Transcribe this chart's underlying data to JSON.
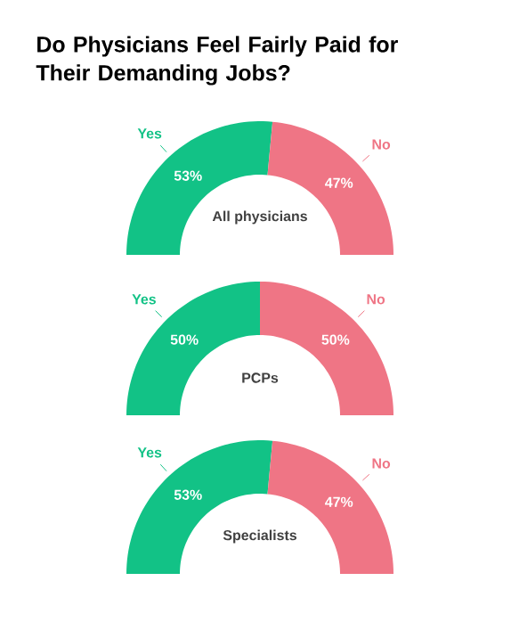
{
  "chart_data": [
    {
      "type": "donut",
      "title": "Do Physicians Feel Fairly Paid for Their Demanding Jobs?",
      "subtitle": "All physicians",
      "categories": [
        "Yes",
        "No"
      ],
      "values": [
        53,
        47
      ],
      "colors": [
        "#12c286",
        "#ef7585"
      ],
      "value_labels": [
        "53%",
        "47%"
      ]
    },
    {
      "type": "donut",
      "subtitle": "PCPs",
      "categories": [
        "Yes",
        "No"
      ],
      "values": [
        50,
        50
      ],
      "colors": [
        "#12c286",
        "#ef7585"
      ],
      "value_labels": [
        "50%",
        "50%"
      ]
    },
    {
      "type": "donut",
      "subtitle": "Specialists",
      "categories": [
        "Yes",
        "No"
      ],
      "values": [
        53,
        47
      ],
      "colors": [
        "#12c286",
        "#ef7585"
      ],
      "value_labels": [
        "53%",
        "47%"
      ]
    }
  ]
}
